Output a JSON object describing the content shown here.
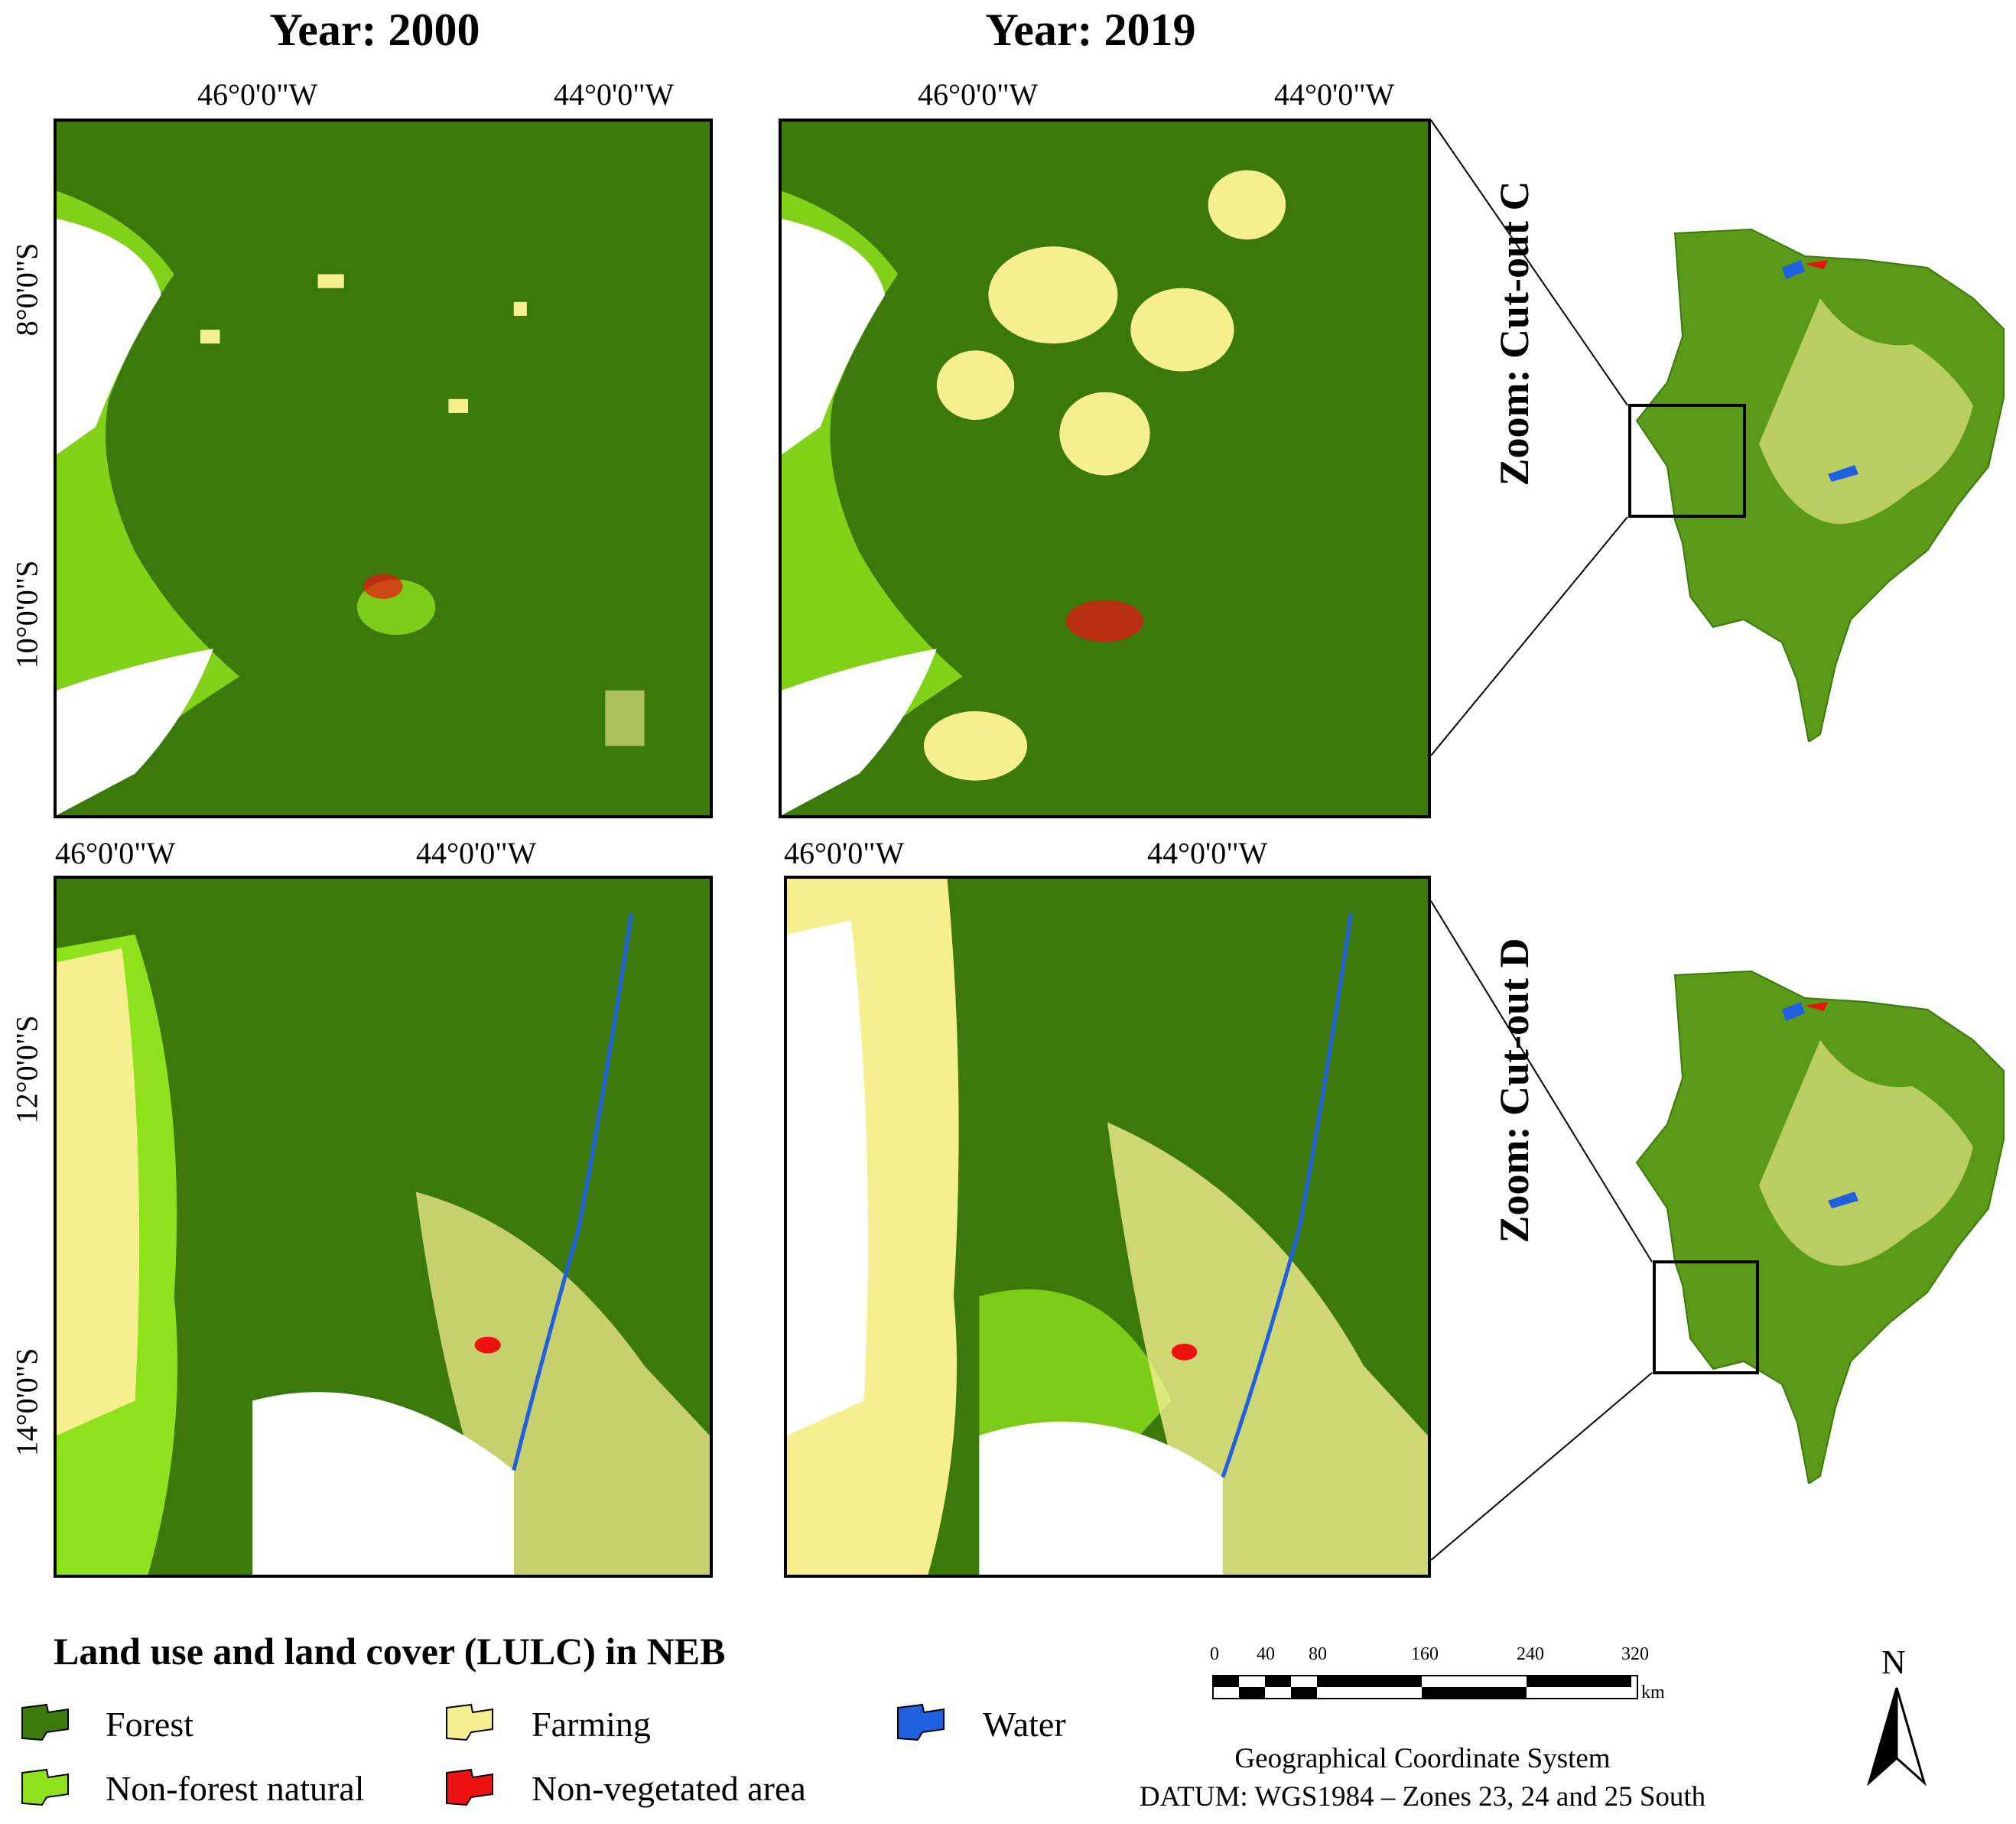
{
  "columns": [
    {
      "title": "Year: 2000"
    },
    {
      "title": "Year: 2019"
    }
  ],
  "panels_top": {
    "lon_ticks": [
      "46°0'0\"W",
      "44°0'0\"W"
    ],
    "lat_ticks": [
      "8°0'0\"S",
      "10°0'0\"S"
    ]
  },
  "panels_bottom": {
    "lon_ticks": [
      "46°0'0\"W",
      "44°0'0\"W"
    ],
    "lat_ticks": [
      "12°0'0\"S",
      "14°0'0\"S"
    ]
  },
  "zoom_labels": [
    "Zoom: Cut-out C",
    "Zoom: Cut-out D"
  ],
  "legend": {
    "title": "Land use and land cover (LULC) in NEB",
    "items": [
      {
        "label": "Forest",
        "color": "#3b7a0a"
      },
      {
        "label": "Farming",
        "color": "#f5ef8f"
      },
      {
        "label": "Water",
        "color": "#1f5fe0"
      },
      {
        "label": "Non-forest natural",
        "color": "#8fe11c"
      },
      {
        "label": "Non-vegetated area",
        "color": "#ee1111"
      }
    ]
  },
  "scale_bar": {
    "ticks": [
      "0",
      "40",
      "80",
      "160",
      "240",
      "320"
    ],
    "unit": "km"
  },
  "north_arrow": {
    "label": "N"
  },
  "coordinate_system": {
    "line1": "Geographical Coordinate System",
    "line2": "DATUM: WGS1984 – Zones 23, 24 and 25 South"
  }
}
